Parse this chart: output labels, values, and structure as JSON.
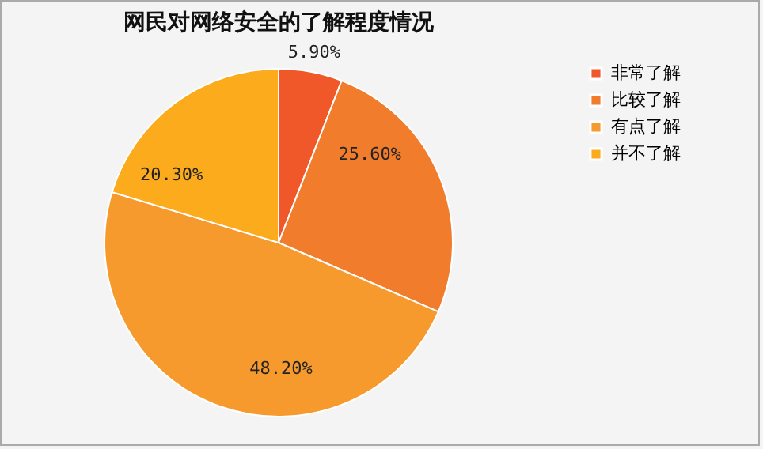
{
  "chart_data": {
    "type": "pie",
    "title": "网民对网络安全的了解程度情况",
    "categories": [
      "非常了解",
      "比较了解",
      "有点了解",
      "并不了解"
    ],
    "values": [
      5.9,
      25.6,
      48.2,
      20.3
    ],
    "value_labels": [
      "5.90%",
      "25.60%",
      "48.20%",
      "20.30%"
    ],
    "colors": [
      "#f0582a",
      "#f07c2c",
      "#f79a2e",
      "#fbab1b"
    ],
    "legend": "right"
  }
}
